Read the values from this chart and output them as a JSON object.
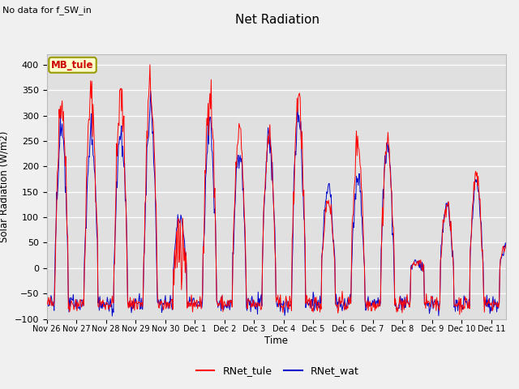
{
  "title": "Net Radiation",
  "xlabel": "Time",
  "ylabel": "Solar Radiation (W/m2)",
  "no_data_text": "No data for f_SW_in",
  "location_label": "MB_tule",
  "ylim": [
    -100,
    420
  ],
  "line_color_tule": "#ff0000",
  "line_color_wat": "#0000cc",
  "fig_facecolor": "#f0f0f0",
  "plot_bg_color": "#e0e0e0",
  "legend_bg": "#ffffcc",
  "legend_edge": "#999900",
  "tick_labels": [
    "Nov 26",
    "Nov 27",
    "Nov 28",
    "Nov 29",
    "Nov 30",
    "Dec 1",
    "Dec 2",
    "Dec 3",
    "Dec 4",
    "Dec 5",
    "Dec 6",
    "Dec 7",
    "Dec 8",
    "Dec 9",
    "Dec 10",
    "Dec 11"
  ],
  "yticks": [
    -100,
    -50,
    0,
    50,
    100,
    150,
    200,
    250,
    300,
    350,
    400
  ],
  "peaks_tule": [
    330,
    335,
    335,
    355,
    100,
    350,
    265,
    260,
    340,
    135,
    250,
    248,
    10,
    125,
    185,
    45
  ],
  "peaks_wat": [
    270,
    265,
    270,
    295,
    100,
    290,
    230,
    260,
    305,
    155,
    170,
    240,
    10,
    125,
    170,
    40
  ],
  "night_base": -70,
  "night_std": 8,
  "seed": 42
}
